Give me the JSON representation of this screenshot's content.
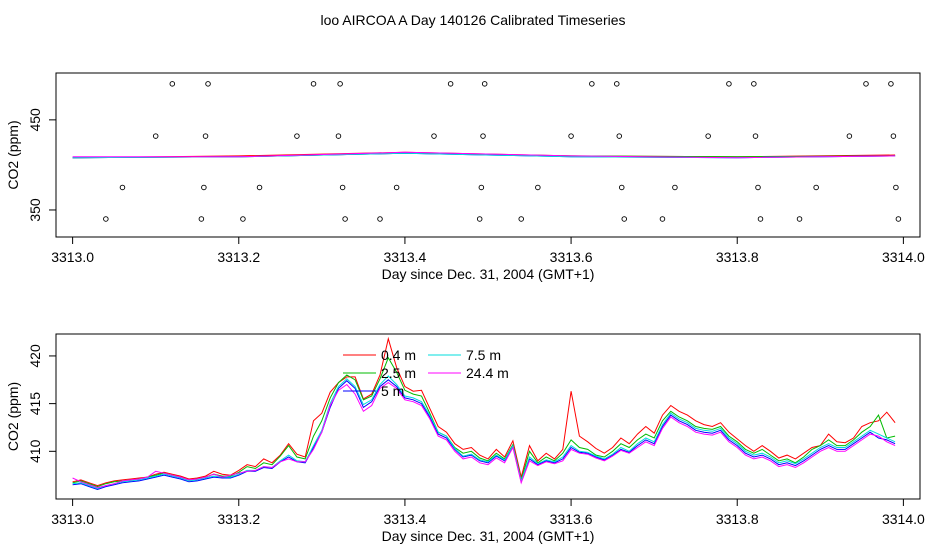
{
  "figure": {
    "title": "loo AIRCOA A  Day 140126  Calibrated Timeseries"
  },
  "chart_data": [
    {
      "type": "scatter",
      "xlabel": "Day since Dec. 31, 2004 (GMT+1)",
      "ylabel": "CO2 (ppm)",
      "xlim": [
        3312.98,
        3314.02
      ],
      "ylim": [
        320,
        502
      ],
      "xticks": [
        3313.0,
        3313.2,
        3313.4,
        3313.6,
        3313.8,
        3314.0
      ],
      "xtick_labels": [
        "3313.0",
        "3313.2",
        "3313.4",
        "3313.6",
        "3313.8",
        "3314.0"
      ],
      "yticks": [
        350,
        450
      ],
      "ytick_labels": [
        "350",
        "450"
      ],
      "grid": false,
      "points": {
        "x": [
          3313.04,
          3313.06,
          3313.1,
          3313.12,
          3313.155,
          3313.158,
          3313.16,
          3313.163,
          3313.205,
          3313.225,
          3313.27,
          3313.29,
          3313.32,
          3313.322,
          3313.325,
          3313.328,
          3313.37,
          3313.39,
          3313.435,
          3313.455,
          3313.49,
          3313.492,
          3313.494,
          3313.496,
          3313.54,
          3313.56,
          3313.6,
          3313.625,
          3313.655,
          3313.658,
          3313.661,
          3313.664,
          3313.71,
          3313.725,
          3313.765,
          3313.79,
          3313.82,
          3313.822,
          3313.825,
          3313.828,
          3313.875,
          3313.895,
          3313.935,
          3313.955,
          3313.985,
          3313.988,
          3313.991,
          3313.994
        ],
        "y": [
          340,
          375,
          432,
          490,
          340,
          375,
          432,
          490,
          340,
          375,
          432,
          490,
          432,
          490,
          375,
          340,
          340,
          375,
          432,
          490,
          340,
          375,
          432,
          490,
          340,
          375,
          432,
          490,
          490,
          432,
          375,
          340,
          340,
          375,
          432,
          490,
          490,
          432,
          375,
          340,
          340,
          375,
          432,
          490,
          490,
          432,
          375,
          340
        ]
      },
      "series": [
        {
          "name": "0.4 m",
          "color": "#ff0000",
          "x": [
            3313.0,
            3313.2,
            3313.4,
            3313.6,
            3313.8,
            3313.99
          ],
          "y": [
            408,
            410,
            414,
            410,
            409,
            411
          ]
        },
        {
          "name": "2.5 m",
          "color": "#00bb00",
          "x": [
            3313.0,
            3313.2,
            3313.4,
            3313.6,
            3313.8,
            3313.99
          ],
          "y": [
            408,
            409,
            413,
            410,
            409,
            410
          ]
        },
        {
          "name": "5 m",
          "color": "#0000ff",
          "x": [
            3313.0,
            3313.2,
            3313.4,
            3313.6,
            3313.8,
            3313.99
          ],
          "y": [
            408,
            409,
            413,
            409,
            408,
            410
          ]
        },
        {
          "name": "7.5 m",
          "color": "#00dddd",
          "x": [
            3313.0,
            3313.2,
            3313.4,
            3313.6,
            3313.8,
            3313.99
          ],
          "y": [
            408,
            409,
            413,
            409,
            408,
            410
          ]
        },
        {
          "name": "24.4 m",
          "color": "#ff00ff",
          "x": [
            3313.0,
            3313.2,
            3313.4,
            3313.6,
            3313.8,
            3313.99
          ],
          "y": [
            409,
            409,
            414,
            410,
            408,
            410
          ]
        }
      ]
    },
    {
      "type": "line",
      "xlabel": "Day since Dec. 31, 2004 (GMT+1)",
      "ylabel": "CO2 (ppm)",
      "xlim": [
        3312.98,
        3314.02
      ],
      "ylim": [
        405,
        422.3
      ],
      "xticks": [
        3313.0,
        3313.2,
        3313.4,
        3313.6,
        3313.8,
        3314.0
      ],
      "xtick_labels": [
        "3313.0",
        "3313.2",
        "3313.4",
        "3313.6",
        "3313.8",
        "3314.0"
      ],
      "yticks": [
        410,
        415,
        420
      ],
      "ytick_labels": [
        "410",
        "415",
        "420"
      ],
      "grid": false,
      "legend": "top-center",
      "x": [
        3313.0,
        3313.01,
        3313.02,
        3313.03,
        3313.04,
        3313.05,
        3313.06,
        3313.07,
        3313.08,
        3313.09,
        3313.1,
        3313.11,
        3313.12,
        3313.13,
        3313.14,
        3313.15,
        3313.16,
        3313.17,
        3313.18,
        3313.19,
        3313.2,
        3313.21,
        3313.22,
        3313.23,
        3313.24,
        3313.25,
        3313.26,
        3313.27,
        3313.28,
        3313.29,
        3313.3,
        3313.31,
        3313.32,
        3313.33,
        3313.34,
        3313.35,
        3313.36,
        3313.37,
        3313.38,
        3313.39,
        3313.4,
        3313.41,
        3313.42,
        3313.43,
        3313.44,
        3313.45,
        3313.46,
        3313.47,
        3313.48,
        3313.49,
        3313.5,
        3313.51,
        3313.52,
        3313.53,
        3313.54,
        3313.55,
        3313.56,
        3313.57,
        3313.58,
        3313.59,
        3313.6,
        3313.61,
        3313.62,
        3313.63,
        3313.64,
        3313.65,
        3313.66,
        3313.67,
        3313.68,
        3313.69,
        3313.7,
        3313.71,
        3313.72,
        3313.73,
        3313.74,
        3313.75,
        3313.76,
        3313.77,
        3313.78,
        3313.79,
        3313.8,
        3313.81,
        3313.82,
        3313.83,
        3313.84,
        3313.85,
        3313.86,
        3313.87,
        3313.88,
        3313.89,
        3313.9,
        3313.91,
        3313.92,
        3313.93,
        3313.94,
        3313.95,
        3313.96,
        3313.97,
        3313.98,
        3313.99
      ],
      "series": [
        {
          "name": "0.4 m",
          "color": "#ff0000",
          "values": [
            406.8,
            407.0,
            406.7,
            406.4,
            406.7,
            406.9,
            407.0,
            407.1,
            407.2,
            407.3,
            407.6,
            407.8,
            407.6,
            407.4,
            407.1,
            407.2,
            407.4,
            407.9,
            407.6,
            407.5,
            408.0,
            408.6,
            408.4,
            409.2,
            408.8,
            409.6,
            410.8,
            409.7,
            409.4,
            413.2,
            414.0,
            416.2,
            417.2,
            417.8,
            417.8,
            415.5,
            416.0,
            418.0,
            421.8,
            418.8,
            416.8,
            416.3,
            416.4,
            414.5,
            412.6,
            412.0,
            410.8,
            410.2,
            410.4,
            409.6,
            409.2,
            410.2,
            409.4,
            411.1,
            407.3,
            410.6,
            409.0,
            409.8,
            409.2,
            410.2,
            416.3,
            411.6,
            411.0,
            410.3,
            409.8,
            410.4,
            411.4,
            410.8,
            411.8,
            412.6,
            411.9,
            413.8,
            414.8,
            414.2,
            413.8,
            413.2,
            412.8,
            412.6,
            413.0,
            412.0,
            411.3,
            410.6,
            410.0,
            410.6,
            410.0,
            409.3,
            409.6,
            409.2,
            409.8,
            410.4,
            410.6,
            411.8,
            411.0,
            410.9,
            411.4,
            412.6,
            413.0,
            413.2,
            414.1,
            413.0
          ]
        },
        {
          "name": "2.5 m",
          "color": "#00bb00",
          "values": [
            406.7,
            406.9,
            406.6,
            406.3,
            406.6,
            406.8,
            406.9,
            407.0,
            407.1,
            407.3,
            407.5,
            407.7,
            407.5,
            407.3,
            407.0,
            407.1,
            407.3,
            407.6,
            407.4,
            407.4,
            407.8,
            408.4,
            408.2,
            408.8,
            408.6,
            409.5,
            410.6,
            409.4,
            409.2,
            411.6,
            413.2,
            415.6,
            417.2,
            418.0,
            417.5,
            415.4,
            415.8,
            417.6,
            419.8,
            418.3,
            416.4,
            416.0,
            415.8,
            414.0,
            412.0,
            411.6,
            410.4,
            409.8,
            410.0,
            409.3,
            409.0,
            409.8,
            409.2,
            410.7,
            407.0,
            410.0,
            408.8,
            409.4,
            409.0,
            409.8,
            411.2,
            410.4,
            410.2,
            409.6,
            409.4,
            410.0,
            410.8,
            410.4,
            411.2,
            411.8,
            411.4,
            413.2,
            414.2,
            413.6,
            413.2,
            412.6,
            412.4,
            412.3,
            412.6,
            411.6,
            411.0,
            410.2,
            409.8,
            410.2,
            409.6,
            409.0,
            409.2,
            408.8,
            409.4,
            410.2,
            410.6,
            411.2,
            410.6,
            410.6,
            411.2,
            412.0,
            412.6,
            413.8,
            411.4,
            411.6
          ]
        },
        {
          "name": "5 m",
          "color": "#0000ff",
          "values": [
            406.5,
            406.6,
            406.3,
            406.0,
            406.3,
            406.5,
            406.7,
            406.8,
            406.9,
            407.1,
            407.3,
            407.5,
            407.3,
            407.1,
            406.8,
            406.9,
            407.1,
            407.3,
            407.2,
            407.2,
            407.5,
            407.9,
            407.9,
            408.3,
            408.2,
            408.9,
            409.4,
            408.9,
            408.8,
            410.4,
            412.0,
            414.6,
            416.6,
            417.4,
            416.6,
            414.6,
            415.2,
            416.8,
            417.5,
            416.8,
            415.6,
            415.4,
            415.0,
            413.6,
            411.8,
            411.4,
            410.2,
            409.4,
            409.6,
            409.0,
            408.8,
            409.5,
            409.0,
            410.5,
            406.8,
            409.2,
            408.6,
            409.0,
            408.8,
            409.2,
            410.4,
            409.9,
            409.8,
            409.4,
            409.1,
            409.6,
            410.2,
            409.9,
            410.6,
            411.2,
            410.8,
            412.6,
            413.8,
            413.2,
            412.8,
            412.2,
            412.0,
            411.9,
            412.2,
            411.2,
            410.6,
            409.8,
            409.4,
            409.6,
            409.2,
            408.6,
            408.8,
            408.5,
            409.0,
            409.6,
            410.2,
            410.6,
            410.2,
            410.2,
            410.8,
            411.4,
            412.0,
            411.4,
            411.2,
            410.8
          ]
        },
        {
          "name": "7.5 m",
          "color": "#00dddd",
          "values": [
            406.6,
            406.7,
            406.4,
            406.1,
            406.4,
            406.6,
            406.8,
            406.9,
            407.0,
            407.2,
            407.4,
            407.6,
            407.4,
            407.2,
            406.9,
            407.0,
            407.2,
            407.4,
            407.3,
            407.3,
            407.6,
            408.0,
            408.0,
            408.4,
            408.3,
            409.0,
            409.6,
            409.0,
            408.9,
            410.6,
            412.2,
            415.0,
            416.8,
            417.6,
            416.8,
            414.9,
            415.4,
            417.0,
            417.9,
            417.0,
            415.8,
            415.6,
            415.2,
            413.8,
            412.0,
            411.6,
            410.3,
            409.5,
            409.7,
            409.1,
            408.9,
            409.6,
            409.1,
            410.6,
            406.9,
            409.4,
            408.7,
            409.1,
            408.9,
            409.4,
            410.6,
            410.0,
            409.9,
            409.5,
            409.2,
            409.7,
            410.4,
            410.0,
            410.8,
            411.4,
            411.0,
            412.8,
            414.0,
            413.4,
            413.0,
            412.4,
            412.2,
            412.1,
            412.4,
            411.4,
            410.8,
            410.0,
            409.6,
            409.8,
            409.4,
            408.8,
            409.0,
            408.7,
            409.2,
            409.8,
            410.4,
            410.8,
            410.4,
            410.4,
            411.0,
            411.6,
            412.2,
            411.8,
            411.4,
            411.0
          ]
        },
        {
          "name": "24.4 m",
          "color": "#ff00ff",
          "values": [
            407.2,
            406.8,
            406.5,
            406.2,
            406.4,
            406.6,
            406.9,
            407.0,
            407.1,
            407.3,
            407.9,
            407.7,
            407.5,
            407.3,
            407.0,
            407.1,
            407.3,
            407.6,
            407.3,
            407.5,
            407.7,
            407.9,
            408.0,
            408.4,
            408.3,
            408.9,
            409.2,
            408.9,
            408.9,
            410.2,
            412.0,
            414.8,
            416.4,
            417.0,
            416.0,
            414.2,
            414.8,
            416.6,
            417.2,
            416.6,
            415.4,
            415.2,
            414.8,
            413.4,
            411.6,
            411.2,
            410.0,
            409.2,
            409.4,
            408.8,
            408.6,
            409.3,
            408.8,
            410.4,
            406.7,
            409.0,
            408.5,
            408.9,
            408.7,
            409.0,
            410.2,
            409.8,
            409.7,
            409.3,
            409.0,
            409.5,
            410.1,
            409.8,
            410.4,
            411.0,
            410.6,
            412.4,
            413.6,
            413.0,
            412.6,
            412.0,
            411.8,
            411.7,
            412.0,
            411.0,
            410.4,
            409.6,
            409.2,
            409.4,
            409.0,
            408.4,
            408.6,
            408.3,
            408.8,
            409.4,
            410.0,
            410.4,
            410.0,
            410.0,
            410.6,
            411.2,
            411.8,
            411.6,
            411.0,
            410.6
          ]
        }
      ]
    }
  ]
}
